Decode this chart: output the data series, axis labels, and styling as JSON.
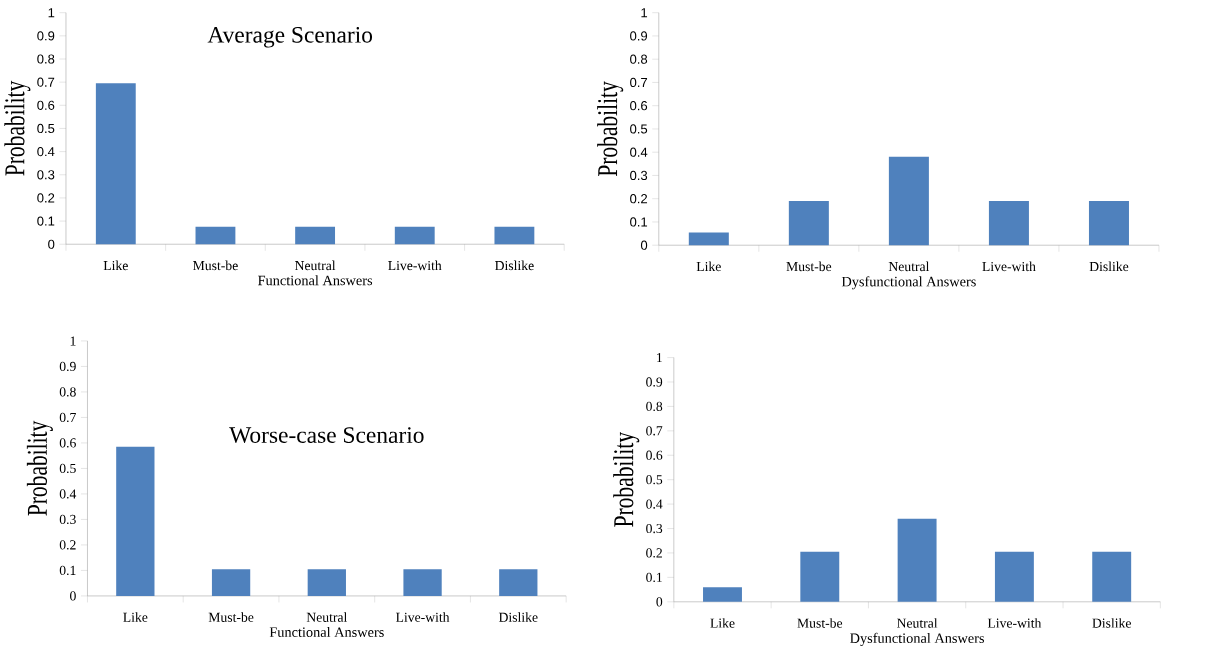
{
  "chart_data": [
    {
      "type": "bar",
      "title": "Average Scenario",
      "xlabel": "Functional Answers",
      "ylabel": "Probability",
      "categories": [
        "Like",
        "Must-be",
        "Neutral",
        "Live-with",
        "Dislike"
      ],
      "values": [
        0.695,
        0.075,
        0.075,
        0.075,
        0.075
      ],
      "color": "#4f81bd",
      "ylim": [
        0,
        1
      ],
      "yticks": [
        0,
        0.1,
        0.2,
        0.3,
        0.4,
        0.5,
        0.6,
        0.7,
        0.8,
        0.9,
        1
      ]
    },
    {
      "type": "bar",
      "xlabel": "Dysfunctional Answers",
      "ylabel": "Probability",
      "categories": [
        "Like",
        "Must-be",
        "Neutral",
        "Live-with",
        "Dislike"
      ],
      "values": [
        0.055,
        0.19,
        0.38,
        0.19,
        0.19
      ],
      "color": "#4f81bd",
      "ylim": [
        0,
        1
      ],
      "yticks": [
        0,
        0.1,
        0.2,
        0.3,
        0.4,
        0.5,
        0.6,
        0.7,
        0.8,
        0.9,
        1
      ]
    },
    {
      "type": "bar",
      "title": "Worse-case Scenario",
      "xlabel": "Functional Answers",
      "ylabel": "Probability",
      "categories": [
        "Like",
        "Must-be",
        "Neutral",
        "Live-with",
        "Dislike"
      ],
      "values": [
        0.585,
        0.105,
        0.105,
        0.105,
        0.105
      ],
      "color": "#4f81bd",
      "ylim": [
        0,
        1
      ],
      "yticks": [
        0,
        0.1,
        0.2,
        0.3,
        0.4,
        0.5,
        0.6,
        0.7,
        0.8,
        0.9,
        1
      ]
    },
    {
      "type": "bar",
      "xlabel": "Dysfunctional Answers",
      "ylabel": "Probability",
      "categories": [
        "Like",
        "Must-be",
        "Neutral",
        "Live-with",
        "Dislike"
      ],
      "values": [
        0.06,
        0.205,
        0.34,
        0.205,
        0.205
      ],
      "color": "#4f81bd",
      "ylim": [
        0,
        1
      ],
      "yticks": [
        0,
        0.1,
        0.2,
        0.3,
        0.4,
        0.5,
        0.6,
        0.7,
        0.8,
        0.9,
        1
      ]
    }
  ]
}
